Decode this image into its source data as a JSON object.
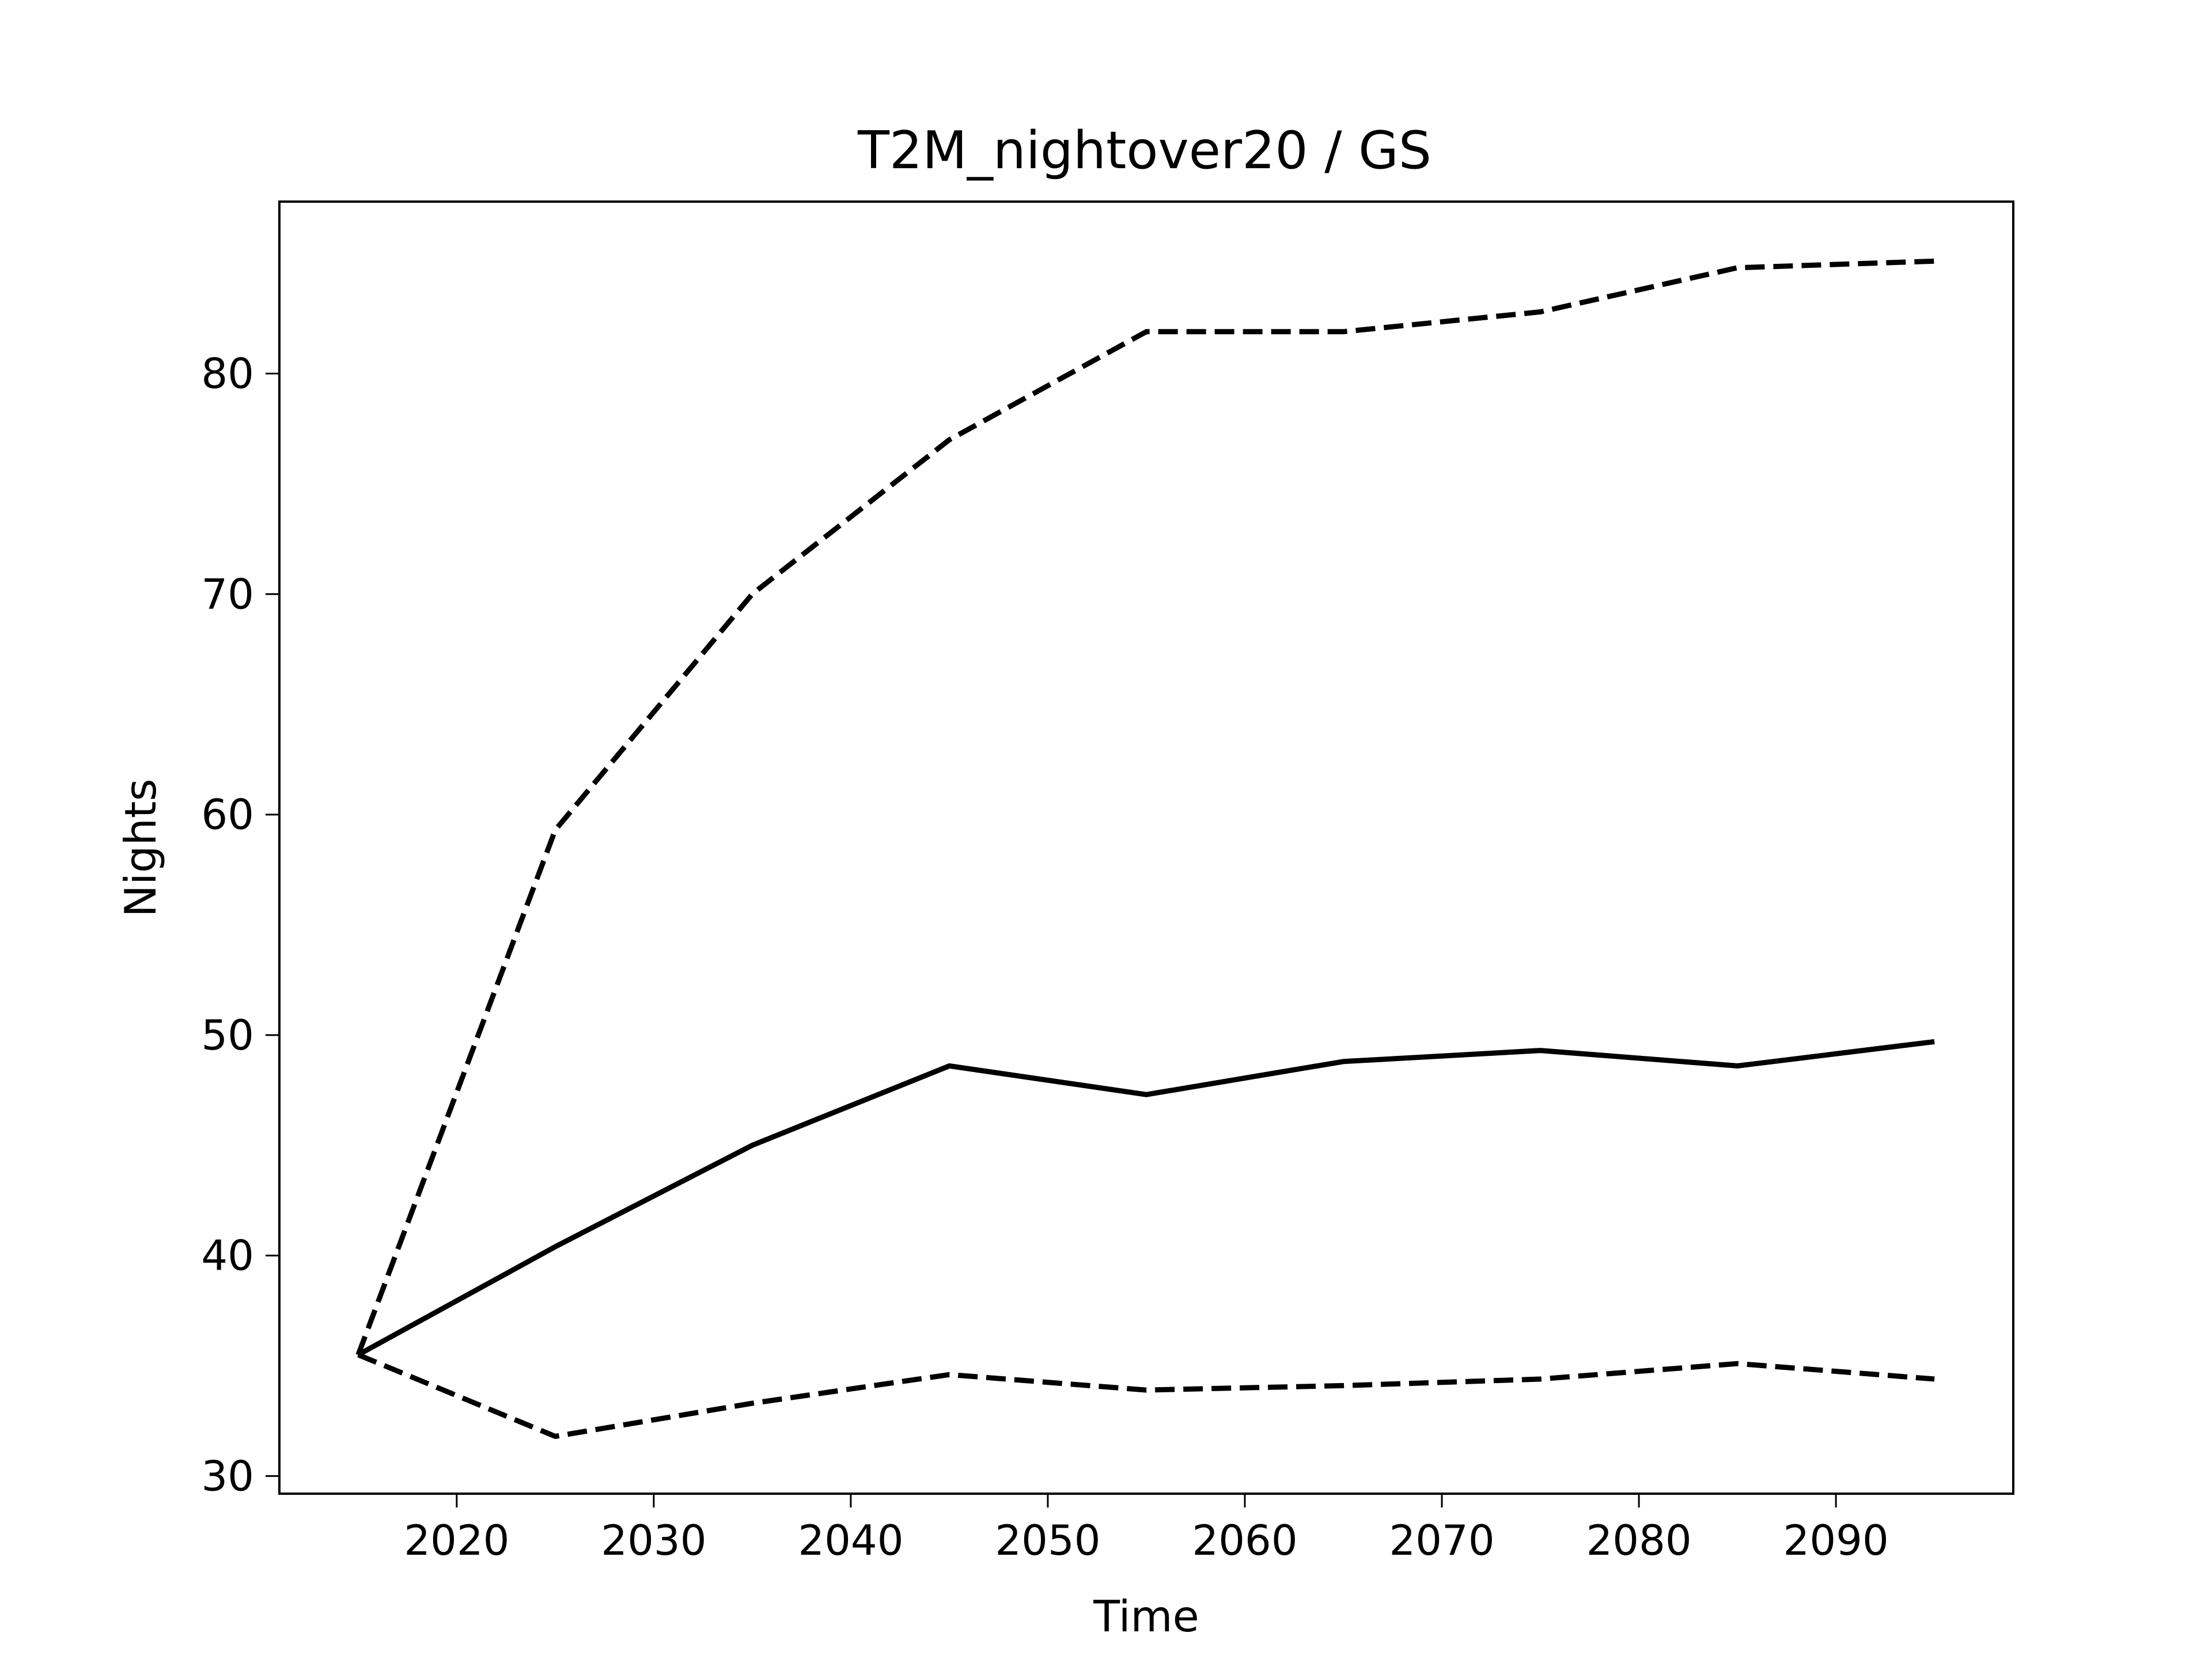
{
  "chart_data": {
    "type": "line",
    "title": "T2M_nightover20 / GS",
    "xlabel": "Time",
    "ylabel": "Nights",
    "xlim": [
      2011,
      2099
    ],
    "ylim": [
      29.2,
      87.8
    ],
    "xticks": [
      2020,
      2030,
      2040,
      2050,
      2060,
      2070,
      2080,
      2090
    ],
    "yticks": [
      30,
      40,
      50,
      60,
      70,
      80
    ],
    "grid": false,
    "x": [
      2015,
      2025,
      2035,
      2045,
      2055,
      2065,
      2075,
      2085,
      2095
    ],
    "series": [
      {
        "style": "dashed",
        "color": "#000000",
        "values": [
          35.5,
          59.3,
          70.0,
          77.0,
          81.9,
          81.9,
          82.8,
          84.8,
          85.1
        ]
      },
      {
        "style": "solid",
        "color": "#000000",
        "values": [
          35.5,
          40.4,
          45.0,
          48.6,
          47.3,
          48.8,
          49.3,
          48.6,
          49.7
        ]
      },
      {
        "style": "dashed",
        "color": "#000000",
        "values": [
          35.5,
          31.8,
          33.3,
          34.6,
          33.9,
          34.1,
          34.4,
          35.1,
          34.4
        ]
      }
    ]
  }
}
